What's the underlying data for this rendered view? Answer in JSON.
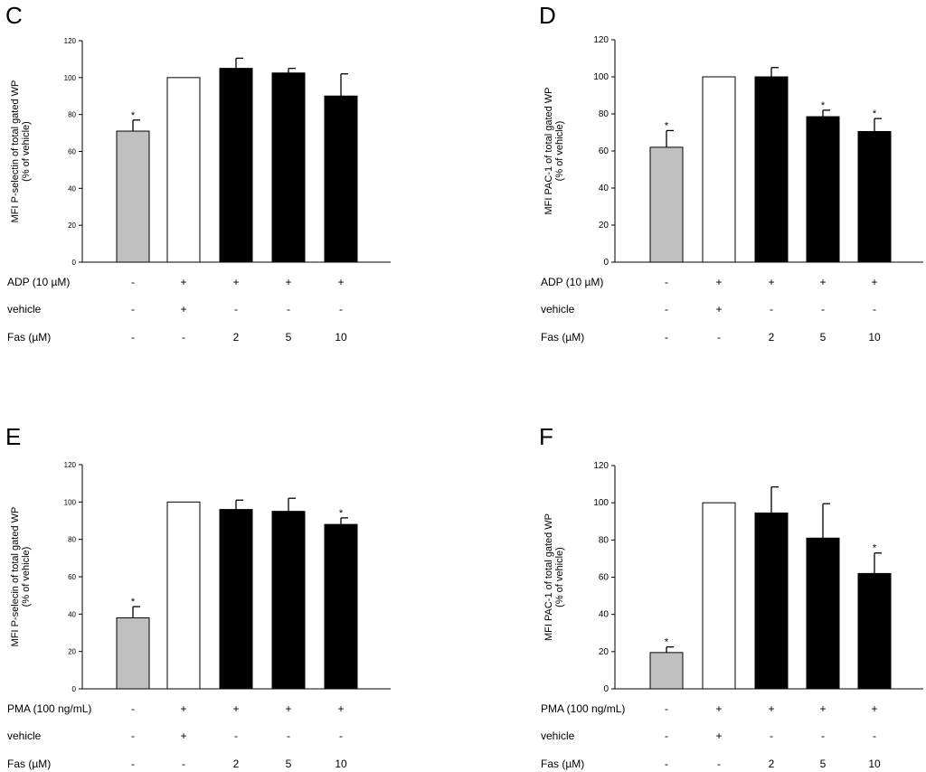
{
  "chart_data": [
    {
      "panel": "C",
      "type": "bar",
      "ylabel_lines": [
        "MFI P-selectin of total gated WP",
        "(% of vehicle)"
      ],
      "ylim": [
        0,
        120
      ],
      "yticks": [
        0,
        20,
        40,
        60,
        80,
        100,
        120
      ],
      "values": [
        71,
        100,
        105,
        102.5,
        90
      ],
      "errors": [
        6,
        0,
        5.5,
        2.5,
        12
      ],
      "bar_colors": [
        "#c0c0c0",
        "#ffffff",
        "#000000",
        "#000000",
        "#000000"
      ],
      "significance": [
        "*",
        "",
        "",
        "",
        ""
      ],
      "conditions": [
        {
          "label": "ADP (10 µM)",
          "values": [
            "-",
            "+",
            "+",
            "+",
            "+"
          ]
        },
        {
          "label": "vehicle",
          "values": [
            "-",
            "+",
            "-",
            "-",
            "-"
          ]
        },
        {
          "label": "Fas (µM)",
          "values": [
            "-",
            "-",
            "2",
            "5",
            "10"
          ]
        }
      ]
    },
    {
      "panel": "D",
      "type": "bar",
      "ylabel_lines": [
        "MFI PAC-1 of total gated WP",
        "(% of vehicle)"
      ],
      "ylim": [
        0,
        120
      ],
      "yticks": [
        0,
        20,
        40,
        60,
        80,
        100,
        120
      ],
      "values": [
        62,
        100,
        100,
        78.5,
        70.5
      ],
      "errors": [
        9,
        0,
        5,
        3.5,
        7
      ],
      "bar_colors": [
        "#c0c0c0",
        "#ffffff",
        "#000000",
        "#000000",
        "#000000"
      ],
      "significance": [
        "*",
        "",
        "",
        "*",
        "*"
      ],
      "conditions": [
        {
          "label": "ADP (10 µM)",
          "values": [
            "-",
            "+",
            "+",
            "+",
            "+"
          ]
        },
        {
          "label": "vehicle",
          "values": [
            "-",
            "+",
            "-",
            "-",
            "-"
          ]
        },
        {
          "label": "Fas (µM)",
          "values": [
            "-",
            "-",
            "2",
            "5",
            "10"
          ]
        }
      ]
    },
    {
      "panel": "E",
      "type": "bar",
      "ylabel_lines": [
        "MFI P-selecin of total gated WP",
        "(% of vehicle)"
      ],
      "ylim": [
        0,
        120
      ],
      "yticks": [
        0,
        20,
        40,
        60,
        80,
        100,
        120
      ],
      "values": [
        38,
        100,
        96,
        95,
        88
      ],
      "errors": [
        6,
        0,
        5,
        7,
        3.5
      ],
      "bar_colors": [
        "#c0c0c0",
        "#ffffff",
        "#000000",
        "#000000",
        "#000000"
      ],
      "significance": [
        "*",
        "",
        "",
        "",
        "*"
      ],
      "conditions": [
        {
          "label": "PMA (100 ng/mL)",
          "values": [
            "-",
            "+",
            "+",
            "+",
            "+"
          ]
        },
        {
          "label": "vehicle",
          "values": [
            "-",
            "+",
            "-",
            "-",
            "-"
          ]
        },
        {
          "label": "Fas (µM)",
          "values": [
            "-",
            "-",
            "2",
            "5",
            "10"
          ]
        }
      ]
    },
    {
      "panel": "F",
      "type": "bar",
      "ylabel_lines": [
        "MFI PAC-1 of total gated WP",
        "(% of vehicle)"
      ],
      "ylim": [
        0,
        120
      ],
      "yticks": [
        0,
        20,
        40,
        60,
        80,
        100,
        120
      ],
      "values": [
        19.5,
        100,
        94.5,
        81,
        62
      ],
      "errors": [
        3,
        0,
        14,
        18.5,
        11
      ],
      "bar_colors": [
        "#c0c0c0",
        "#ffffff",
        "#000000",
        "#000000",
        "#000000"
      ],
      "significance": [
        "*",
        "",
        "",
        "",
        "*"
      ],
      "conditions": [
        {
          "label": "PMA (100 ng/mL)",
          "values": [
            "-",
            "+",
            "+",
            "+",
            "+"
          ]
        },
        {
          "label": "vehicle",
          "values": [
            "-",
            "+",
            "-",
            "-",
            "-"
          ]
        },
        {
          "label": "Fas (µM)",
          "values": [
            "-",
            "-",
            "2",
            "5",
            "10"
          ]
        }
      ]
    }
  ]
}
